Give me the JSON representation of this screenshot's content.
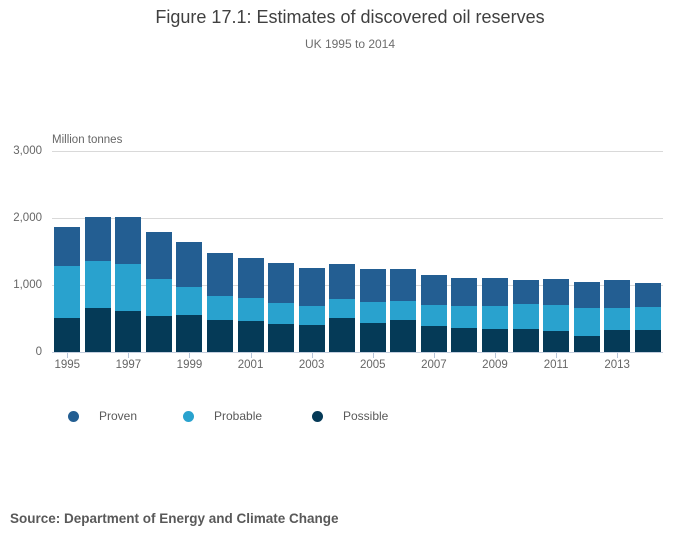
{
  "header": {
    "title": "Figure 17.1: Estimates of discovered oil reserves",
    "subtitle": "UK 1995 to 2014"
  },
  "chart_data": {
    "type": "bar",
    "stacked": true,
    "title": "Figure 17.1: Estimates of discovered oil reserves",
    "subtitle": "UK 1995 to 2014",
    "unit_label": "Million tonnes",
    "categories": [
      "1995",
      "1996",
      "1997",
      "1998",
      "1999",
      "2000",
      "2001",
      "2002",
      "2003",
      "2004",
      "2005",
      "2006",
      "2007",
      "2008",
      "2009",
      "2010",
      "2011",
      "2012",
      "2013",
      "2014"
    ],
    "series": [
      {
        "name": "Proven",
        "color": "#235e92",
        "values": [
          590,
          660,
          700,
          690,
          675,
          650,
          600,
          600,
          565,
          530,
          495,
          490,
          455,
          425,
          415,
          370,
          390,
          400,
          410,
          365
        ]
      },
      {
        "name": "Probable",
        "color": "#29a2ce",
        "values": [
          770,
          695,
          705,
          560,
          420,
          360,
          345,
          315,
          285,
          270,
          310,
          275,
          310,
          330,
          340,
          365,
          390,
          405,
          330,
          340
        ]
      },
      {
        "name": "Possible",
        "color": "#053a57",
        "values": [
          510,
          660,
          610,
          535,
          550,
          475,
          465,
          420,
          400,
          515,
          435,
          480,
          390,
          355,
          345,
          345,
          310,
          245,
          330,
          330
        ]
      }
    ],
    "stack_order_bottom_to_top": [
      "Possible",
      "Probable",
      "Proven"
    ],
    "ylim": [
      0,
      3000
    ],
    "yticks": [
      {
        "value": 0,
        "label": "0"
      },
      {
        "value": 1000,
        "label": "1,000"
      },
      {
        "value": 2000,
        "label": "2,000"
      },
      {
        "value": 3000,
        "label": "3,000"
      }
    ],
    "xtick_labels": [
      "1995",
      "1997",
      "1999",
      "2001",
      "2003",
      "2005",
      "2007",
      "2009",
      "2011",
      "2013"
    ],
    "grid": true,
    "legend_position": "bottom"
  },
  "legend": {
    "items": [
      {
        "label": "Proven",
        "color": "#235e92"
      },
      {
        "label": "Probable",
        "color": "#29a2ce"
      },
      {
        "label": "Possible",
        "color": "#053a57"
      }
    ]
  },
  "source": {
    "text": "Source: Department of Energy and Climate Change"
  },
  "colors": {
    "background": "#ffffff",
    "gridline": "#d9d9d9",
    "axis_line": "#c4cede",
    "tick": "#b6c4d8",
    "axis_text": "#666666",
    "title_text": "#404040",
    "subtitle_text": "#6d6d6d",
    "legend_text": "#595959",
    "source_text": "#595959"
  }
}
